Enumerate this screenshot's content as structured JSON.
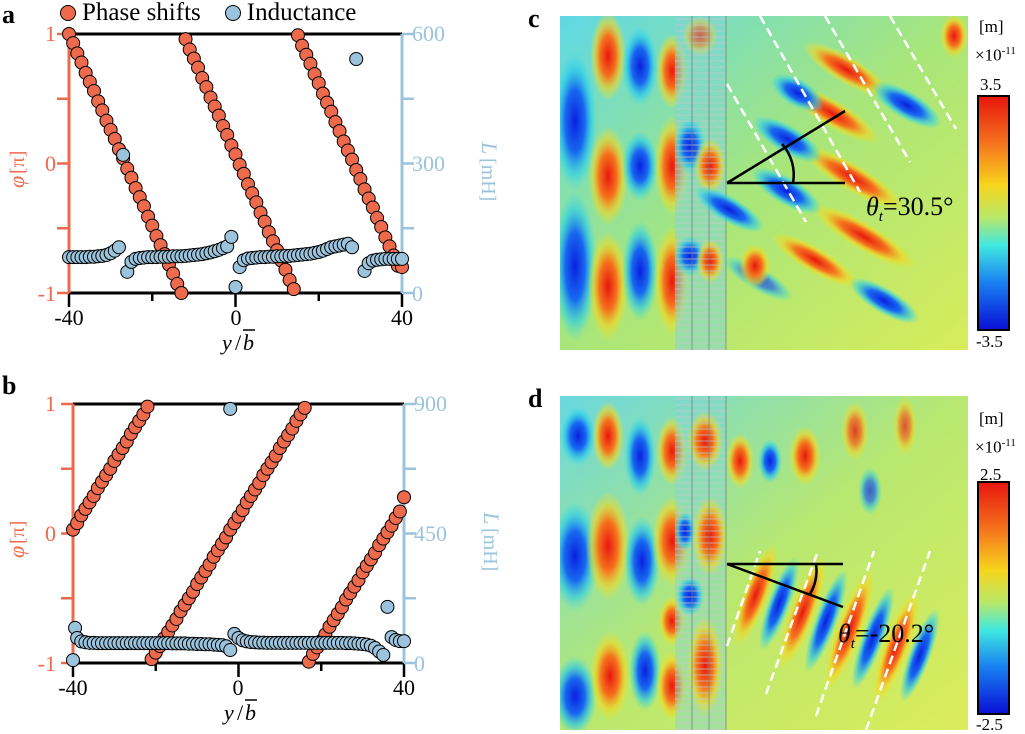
{
  "legend": {
    "phase_label": "Phase shifts",
    "inductance_label": "Inductance",
    "phase_color": "#ee6a4c",
    "inductance_color": "#9bc3dc"
  },
  "panels": {
    "a": {
      "letter": "a"
    },
    "b": {
      "letter": "b"
    },
    "c": {
      "letter": "c",
      "unit": "[m]",
      "scale": "×10",
      "scale_exp": "-11",
      "cb_max": "3.5",
      "cb_min": "-3.5",
      "theta_symbol": "θ",
      "theta_sub": "t",
      "theta_value": "=30.5°"
    },
    "d": {
      "letter": "d",
      "unit": "[m]",
      "scale": "×10",
      "scale_exp": "-11",
      "cb_max": "2.5",
      "cb_min": "-2.5",
      "theta_symbol": "θ",
      "theta_sub": "t",
      "theta_value": "=-20.2°"
    }
  },
  "chart_data": [
    {
      "id": "a",
      "type": "scatter",
      "title": "",
      "xlabel": "y/b̄",
      "ylabel": "φ [π]",
      "y2label": "L [mH]",
      "xlim": [
        -40,
        40
      ],
      "ylim": [
        -1,
        1
      ],
      "y2lim": [
        0,
        600
      ],
      "xticks": [
        -40,
        0,
        40
      ],
      "xminor": [
        -20,
        20
      ],
      "yticks": [
        -1,
        0,
        1
      ],
      "yminor": [
        -0.5,
        0.5
      ],
      "y2ticks": [
        0,
        300,
        600
      ],
      "y2minor": [
        150,
        450
      ],
      "series": [
        {
          "name": "Phase shifts",
          "axis": "left",
          "x": [
            -40,
            -39,
            -38,
            -37,
            -36,
            -35,
            -34,
            -33,
            -32,
            -31,
            -30,
            -29,
            -28,
            -27,
            -26,
            -25,
            -24,
            -23,
            -22,
            -21,
            -20,
            -19,
            -18,
            -17,
            -16,
            -15,
            -14,
            -13,
            -12,
            -11,
            -10,
            -9,
            -8,
            -7,
            -6,
            -5,
            -4,
            -3,
            -2,
            -1,
            0,
            1,
            2,
            3,
            4,
            5,
            6,
            7,
            8,
            9,
            10,
            11,
            12,
            13,
            14,
            15,
            16,
            17,
            18,
            19,
            20,
            21,
            22,
            23,
            24,
            25,
            26,
            27,
            28,
            29,
            30,
            31,
            32,
            33,
            34,
            35,
            36,
            37,
            38,
            39,
            40
          ],
          "values": [
            1.0,
            0.93,
            0.85,
            0.78,
            0.7,
            0.63,
            0.56,
            0.48,
            0.41,
            0.33,
            0.26,
            0.19,
            0.11,
            0.04,
            -0.04,
            -0.11,
            -0.19,
            -0.26,
            -0.33,
            -0.41,
            -0.48,
            -0.56,
            -0.63,
            -0.7,
            -0.78,
            -0.85,
            -0.93,
            -1.0,
            0.96,
            0.88,
            0.81,
            0.74,
            0.66,
            0.59,
            0.51,
            0.44,
            0.37,
            0.29,
            0.22,
            0.14,
            0.07,
            -0.01,
            -0.08,
            -0.16,
            -0.23,
            -0.3,
            -0.38,
            -0.45,
            -0.53,
            -0.6,
            -0.67,
            -0.75,
            -0.82,
            -0.9,
            -0.97,
            0.99,
            0.91,
            0.84,
            0.77,
            0.69,
            0.62,
            0.54,
            0.47,
            0.4,
            0.32,
            0.25,
            0.17,
            0.1,
            0.03,
            -0.05,
            -0.12,
            -0.2,
            -0.27,
            -0.34,
            -0.42,
            -0.49,
            -0.57,
            -0.64,
            -0.71,
            -0.79,
            -0.8
          ]
        },
        {
          "name": "Inductance",
          "axis": "right",
          "x": [
            -40,
            -39,
            -38,
            -37,
            -36,
            -35,
            -34,
            -33,
            -32,
            -31,
            -30,
            -29,
            -28,
            -27,
            -26,
            -25,
            -24,
            -23,
            -22,
            -21,
            -20,
            -19,
            -18,
            -17,
            -16,
            -15,
            -14,
            -13,
            -12,
            -11,
            -10,
            -9,
            -8,
            -7,
            -6,
            -5,
            -4,
            -3,
            -2,
            -1,
            0,
            1,
            2,
            3,
            4,
            5,
            6,
            7,
            8,
            9,
            10,
            11,
            12,
            13,
            14,
            15,
            16,
            17,
            18,
            19,
            20,
            21,
            22,
            23,
            24,
            25,
            26,
            27,
            28,
            29,
            31,
            32,
            33,
            34,
            35,
            36,
            37,
            38,
            39,
            40
          ],
          "values": [
            83,
            83,
            83,
            83,
            83,
            84,
            84,
            85,
            86,
            88,
            92,
            98,
            106,
            320,
            49,
            72,
            79,
            81,
            82,
            83,
            83,
            83,
            84,
            84,
            84,
            85,
            85,
            85,
            86,
            87,
            88,
            89,
            90,
            92,
            94,
            97,
            100,
            104,
            108,
            130,
            14,
            60,
            76,
            80,
            81,
            82,
            83,
            83,
            84,
            84,
            85,
            85,
            86,
            86,
            87,
            88,
            89,
            90,
            91,
            93,
            95,
            98,
            102,
            106,
            108,
            110,
            112,
            114,
            106,
            542,
            51,
            69,
            75,
            77,
            78,
            79,
            79,
            79,
            79,
            79
          ]
        }
      ]
    },
    {
      "id": "b",
      "type": "scatter",
      "title": "",
      "xlabel": "y/b̄",
      "ylabel": "φ [π]",
      "y2label": "L [mH]",
      "xlim": [
        -40,
        40
      ],
      "ylim": [
        -1,
        1
      ],
      "y2lim": [
        0,
        900
      ],
      "xticks": [
        -40,
        0,
        40
      ],
      "xminor": [
        -20,
        20
      ],
      "yticks": [
        -1,
        0,
        1
      ],
      "yminor": [
        -0.5,
        0.5
      ],
      "y2ticks": [
        0,
        450,
        900
      ],
      "y2minor": [
        225,
        675
      ],
      "series": [
        {
          "name": "Phase shifts",
          "axis": "left",
          "x": [
            -40,
            -39,
            -38,
            -37,
            -36,
            -35,
            -34,
            -33,
            -32,
            -31,
            -30,
            -29,
            -28,
            -27,
            -26,
            -25,
            -24,
            -23,
            -22,
            -21,
            -20,
            -19,
            -18,
            -17,
            -16,
            -15,
            -14,
            -13,
            -12,
            -11,
            -10,
            -9,
            -8,
            -7,
            -6,
            -5,
            -4,
            -3,
            -2,
            -1,
            0,
            1,
            2,
            3,
            4,
            5,
            6,
            7,
            8,
            9,
            10,
            11,
            12,
            13,
            14,
            15,
            16,
            17,
            18,
            19,
            20,
            21,
            22,
            23,
            24,
            25,
            26,
            27,
            28,
            29,
            30,
            31,
            32,
            33,
            34,
            35,
            36,
            37,
            38,
            39,
            40
          ],
          "values": [
            0.03,
            0.08,
            0.14,
            0.19,
            0.24,
            0.29,
            0.35,
            0.4,
            0.45,
            0.5,
            0.56,
            0.61,
            0.66,
            0.71,
            0.77,
            0.82,
            0.87,
            0.92,
            0.98,
            -0.97,
            -0.92,
            -0.87,
            -0.81,
            -0.76,
            -0.71,
            -0.66,
            -0.6,
            -0.55,
            -0.5,
            -0.45,
            -0.39,
            -0.34,
            -0.29,
            -0.24,
            -0.18,
            -0.13,
            -0.08,
            -0.03,
            0.03,
            0.08,
            0.13,
            0.18,
            0.24,
            0.29,
            0.34,
            0.39,
            0.45,
            0.5,
            0.55,
            0.6,
            0.66,
            0.71,
            0.76,
            0.81,
            0.87,
            0.92,
            0.97,
            -0.99,
            -0.93,
            -0.88,
            -0.83,
            -0.78,
            -0.72,
            -0.67,
            -0.62,
            -0.57,
            -0.51,
            -0.46,
            -0.41,
            -0.36,
            -0.3,
            -0.25,
            -0.2,
            -0.15,
            -0.09,
            -0.04,
            0.01,
            0.06,
            0.12,
            0.17,
            0.28
          ]
        },
        {
          "name": "Inductance",
          "axis": "right",
          "x": [
            -40,
            -39.5,
            -39,
            -38,
            -37,
            -36,
            -35,
            -34,
            -33,
            -32,
            -31,
            -30,
            -29,
            -28,
            -27,
            -26,
            -25,
            -24,
            -23,
            -22,
            -21,
            -20,
            -19,
            -18,
            -17,
            -16,
            -15,
            -14,
            -13,
            -12,
            -11,
            -10,
            -9,
            -8,
            -7,
            -6,
            -5,
            -4,
            -3,
            -2,
            -2,
            -1,
            0,
            1,
            2,
            3,
            4,
            5,
            6,
            7,
            8,
            9,
            10,
            11,
            12,
            13,
            14,
            15,
            16,
            17,
            18,
            19,
            20,
            21,
            22,
            23,
            24,
            25,
            26,
            27,
            28,
            29,
            30,
            31,
            32,
            33,
            34,
            35,
            36,
            37,
            38,
            39,
            40
          ],
          "values": [
            10,
            122,
            87,
            75,
            72,
            70,
            70,
            69,
            69,
            69,
            69,
            69,
            69,
            69,
            69,
            69,
            69,
            69,
            69,
            69,
            69,
            69,
            69,
            69,
            69,
            68,
            68,
            68,
            68,
            67,
            67,
            66,
            66,
            65,
            65,
            64,
            63,
            62,
            58,
            45,
            883,
            101,
            87,
            79,
            75,
            73,
            72,
            71,
            71,
            70,
            70,
            70,
            70,
            70,
            70,
            70,
            70,
            70,
            70,
            70,
            70,
            70,
            70,
            70,
            70,
            70,
            70,
            70,
            69,
            69,
            68,
            67,
            66,
            64,
            60,
            52,
            40,
            28,
            195,
            90,
            80,
            76,
            76
          ]
        }
      ]
    },
    {
      "id": "c",
      "type": "heatmap",
      "title": "",
      "colorbar_label": "[m] ×10^-11",
      "clim": [
        -3.5,
        3.5
      ],
      "annotation": "θt=30.5°",
      "transmission_angle_deg": 30.5
    },
    {
      "id": "d",
      "type": "heatmap",
      "title": "",
      "colorbar_label": "[m] ×10^-11",
      "clim": [
        -2.5,
        2.5
      ],
      "annotation": "θt=-20.2°",
      "transmission_angle_deg": -20.2
    }
  ],
  "axis_text": {
    "x_ticks": [
      "-40",
      "0",
      "40"
    ],
    "y_ticks": [
      "-1",
      "0",
      "1"
    ],
    "a_y2_ticks": [
      "0",
      "300",
      "600"
    ],
    "b_y2_ticks": [
      "0",
      "450",
      "900"
    ],
    "xlabel_y": "y",
    "xlabel_b": "b",
    "ylabel_phi": "φ",
    "ylabel_unit": "[π]",
    "y2label_L": "L",
    "y2label_unit": "[mH]"
  }
}
